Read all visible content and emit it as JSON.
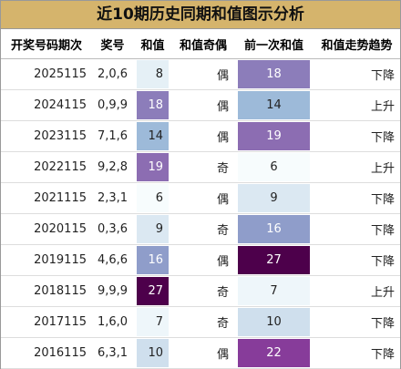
{
  "table": {
    "title": "近10期历史同期和值图示分析",
    "header": [
      "开奖号码期次",
      "奖号",
      "和值",
      "和值奇偶",
      "前一次和值",
      "和值走势趋势"
    ],
    "rows": [
      [
        "2025115",
        "2,0,6",
        8,
        "偶",
        18,
        "下降"
      ],
      [
        "2024115",
        "0,9,9",
        18,
        "偶",
        14,
        "上升"
      ],
      [
        "2023115",
        "7,1,6",
        14,
        "偶",
        19,
        "下降"
      ],
      [
        "2022115",
        "9,2,8",
        19,
        "奇",
        6,
        "上升"
      ],
      [
        "2021115",
        "2,3,1",
        6,
        "偶",
        9,
        "下降"
      ],
      [
        "2020115",
        "0,3,6",
        9,
        "奇",
        16,
        "下降"
      ],
      [
        "2019115",
        "4,6,6",
        16,
        "偶",
        27,
        "下降"
      ],
      [
        "2018115",
        "9,9,9",
        27,
        "奇",
        7,
        "上升"
      ],
      [
        "2017115",
        "1,6,0",
        7,
        "奇",
        10,
        "下降"
      ],
      [
        "2016115",
        "6,3,1",
        10,
        "偶",
        22,
        "下降"
      ]
    ]
  }
}
